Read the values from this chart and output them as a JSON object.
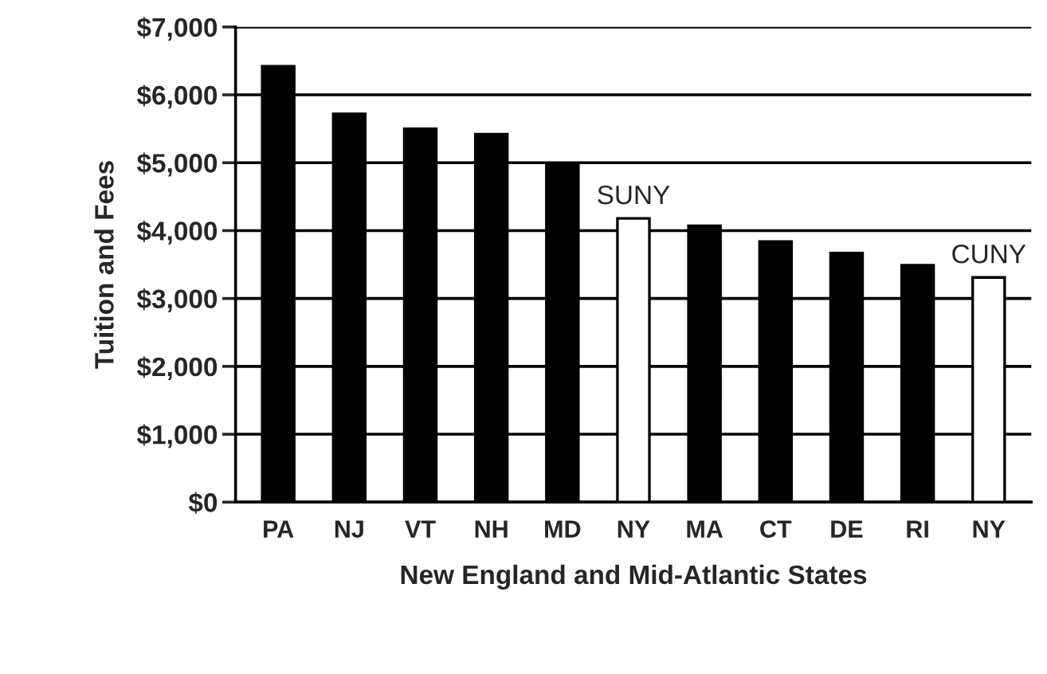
{
  "chart_data": {
    "type": "bar",
    "xlabel": "New England and Mid-Atlantic States",
    "ylabel": "Tuition and Fees",
    "categories": [
      "PA",
      "NJ",
      "VT",
      "NH",
      "MD",
      "NY",
      "MA",
      "CT",
      "DE",
      "RI",
      "NY"
    ],
    "values": [
      6420,
      5720,
      5500,
      5420,
      4960,
      4180,
      4070,
      3840,
      3670,
      3490,
      3310
    ],
    "colors": [
      "#000000",
      "#000000",
      "#000000",
      "#000000",
      "#000000",
      "#ffffff",
      "#000000",
      "#000000",
      "#000000",
      "#000000",
      "#ffffff"
    ],
    "ylim": [
      0,
      7000
    ],
    "yticks": [
      {
        "value": 0,
        "label": "$0"
      },
      {
        "value": 1000,
        "label": "$1,000"
      },
      {
        "value": 2000,
        "label": "$2,000"
      },
      {
        "value": 3000,
        "label": "$3,000"
      },
      {
        "value": 4000,
        "label": "$4,000"
      },
      {
        "value": 5000,
        "label": "$5,000"
      },
      {
        "value": 6000,
        "label": "$6,000"
      },
      {
        "value": 7000,
        "label": "$7,000"
      }
    ],
    "grid": "y",
    "legend": false,
    "annotations": [
      "SUNY",
      "CUNY"
    ]
  }
}
